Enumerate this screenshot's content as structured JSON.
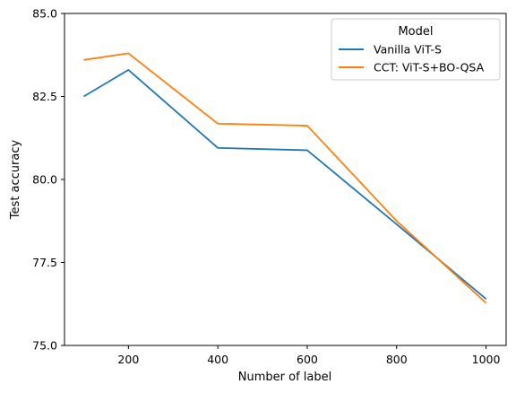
{
  "chart_data": {
    "type": "line",
    "xlabel": "Number of label",
    "ylabel": "Test accuracy",
    "x": [
      100,
      200,
      400,
      600,
      800,
      1000
    ],
    "xlim": [
      57,
      1045
    ],
    "ylim": [
      75.0,
      85.0
    ],
    "xticks": [
      200,
      400,
      600,
      800,
      1000
    ],
    "xtick_labels": [
      "200",
      "400",
      "600",
      "800",
      "1000"
    ],
    "yticks": [
      75.0,
      77.5,
      80.0,
      82.5,
      85.0
    ],
    "ytick_labels": [
      "75.0",
      "77.5",
      "80.0",
      "82.5",
      "85.0"
    ],
    "grid": false,
    "legend": {
      "title": "Model",
      "position": "top-right"
    },
    "series": [
      {
        "name": "Vanilla ViT-S",
        "color": "#1f77b4",
        "values": [
          82.5,
          83.3,
          80.95,
          80.88,
          78.65,
          76.4
        ]
      },
      {
        "name": "CCT: ViT-S+BO-QSA",
        "color": "#ff7f0e",
        "values": [
          83.6,
          83.8,
          81.68,
          81.62,
          78.75,
          76.28
        ]
      }
    ]
  }
}
